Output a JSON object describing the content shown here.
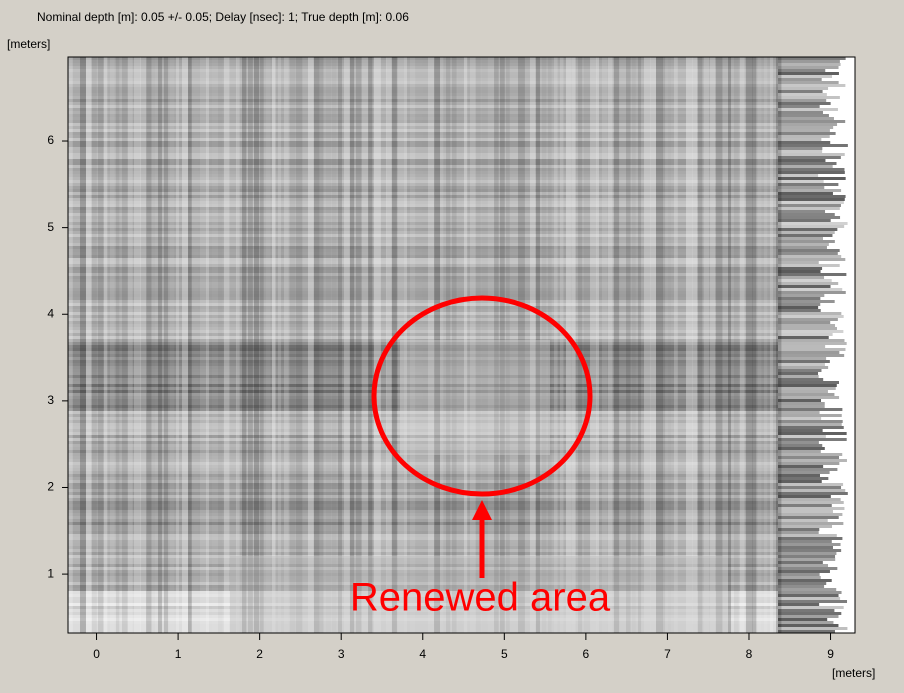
{
  "chart_data": {
    "type": "image",
    "title": "Nominal depth [m]: 0.05 +/- 0.05;  Delay [nsec]: 1;  True depth [m]: 0.06",
    "y_label": "[meters]",
    "x_label": "[meters]",
    "xlim": [
      -0.35,
      9.3
    ],
    "ylim": [
      0.32,
      6.97
    ],
    "xticks": [
      0,
      1,
      2,
      3,
      4,
      5,
      6,
      7,
      8,
      9
    ],
    "yticks": [
      1,
      2,
      3,
      4,
      5,
      6
    ],
    "annotation": "Renewed area"
  }
}
